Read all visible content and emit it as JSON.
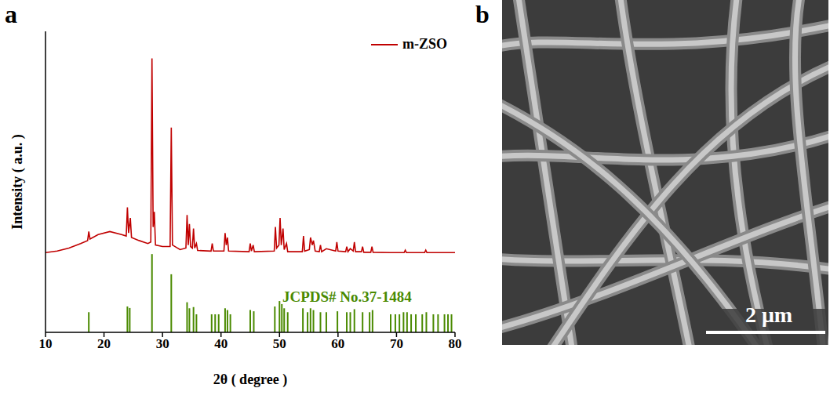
{
  "chart_data": {
    "type": "line",
    "panel_label": "a",
    "x_label": "2θ ( degree )",
    "y_label": "Intensity ( a.u. )",
    "xlim": [
      10,
      80
    ],
    "xticks": [
      10,
      20,
      30,
      40,
      50,
      60,
      70,
      80
    ],
    "ylim": [
      0,
      100
    ],
    "yticks": [],
    "tick_labels": "x",
    "legend": "top-right",
    "series": [
      {
        "name": "m-ZSO",
        "type": "line",
        "color": "#c00000",
        "x": [
          10,
          12,
          14,
          16,
          17.2,
          17.4,
          17.6,
          19,
          21,
          23,
          23.8,
          24.0,
          24.2,
          24.5,
          24.7,
          26,
          27.5,
          28.0,
          28.2,
          28.4,
          28.6,
          28.8,
          30,
          31.3,
          31.5,
          31.7,
          33,
          34.0,
          34.2,
          34.4,
          34.6,
          34.8,
          35.1,
          35.3,
          35.5,
          35.8,
          36.0,
          38.3,
          38.5,
          38.7,
          40.5,
          40.7,
          40.9,
          41.1,
          41.3,
          44.8,
          45.0,
          45.2,
          45.5,
          45.7,
          49.1,
          49.3,
          49.5,
          49.9,
          50.1,
          50.3,
          50.6,
          50.8,
          51.2,
          51.4,
          53.9,
          54.1,
          54.3,
          55.1,
          55.3,
          55.6,
          55.8,
          56.1,
          56.8,
          57.0,
          57.2,
          58.0,
          59.6,
          59.8,
          60.0,
          61.3,
          61.5,
          61.7,
          62.1,
          62.6,
          62.8,
          63.0,
          64.0,
          64.2,
          64.4,
          65.6,
          65.8,
          66.0,
          69,
          71.3,
          71.5,
          71.7,
          74.8,
          75.0,
          75.2,
          80
        ],
        "values": [
          26.5,
          27,
          28,
          29.5,
          30.5,
          33.5,
          31,
          32.5,
          33.5,
          32.5,
          32,
          41.5,
          33,
          38,
          31.5,
          30.5,
          29.5,
          30,
          91,
          35,
          40,
          29,
          28.5,
          28.5,
          68,
          29,
          27.5,
          28,
          39,
          29,
          36,
          28.5,
          28,
          34.5,
          28,
          29.5,
          27.2,
          27,
          29.5,
          27,
          27,
          33,
          29,
          31.5,
          27,
          26.8,
          29.5,
          27,
          29,
          26.8,
          27,
          35,
          28,
          29,
          38,
          29,
          34.5,
          27.5,
          29.5,
          26.8,
          26.8,
          32,
          27,
          27.5,
          31.5,
          29,
          30.5,
          27,
          26.8,
          29,
          26.8,
          27.8,
          27,
          30,
          27,
          26.8,
          28.5,
          26.8,
          27.8,
          27,
          30,
          26.8,
          26.8,
          28.5,
          26.6,
          26.6,
          28.5,
          26.6,
          26.5,
          26.5,
          27.3,
          26.5,
          26.5,
          27.3,
          26.5,
          26.5
        ]
      },
      {
        "name": "JCPDS# No.37-1484",
        "type": "stick",
        "color": "#4a8a00",
        "x": [
          17.4,
          24.0,
          24.4,
          28.2,
          31.5,
          34.2,
          34.6,
          35.3,
          35.8,
          38.4,
          39.0,
          39.6,
          40.7,
          41.1,
          41.6,
          45.0,
          45.6,
          49.2,
          50.0,
          50.4,
          50.8,
          51.4,
          54.0,
          54.8,
          55.3,
          55.8,
          57.0,
          58.0,
          59.9,
          61.5,
          62.1,
          62.8,
          64.2,
          65.4,
          65.9,
          69.0,
          69.8,
          70.5,
          71.2,
          71.8,
          72.5,
          73.3,
          74.4,
          75.1,
          76.3,
          77.1,
          78.2,
          78.8,
          79.4
        ],
        "values": [
          6.7,
          8.6,
          8.1,
          26,
          19.3,
          10,
          8,
          8.4,
          6,
          6,
          6,
          6,
          8,
          7.4,
          6,
          7.4,
          7,
          8.6,
          10.4,
          9.4,
          8,
          6.7,
          8,
          6.7,
          8,
          7.4,
          6.7,
          6.7,
          7,
          6.7,
          6.7,
          7.7,
          6.7,
          6.7,
          7.4,
          6,
          6,
          6,
          6.7,
          6.7,
          6,
          6,
          6,
          6.7,
          6,
          6,
          6,
          6,
          6
        ]
      }
    ]
  },
  "image": {
    "panel_label": "b",
    "scale_bar": "2 μm"
  }
}
